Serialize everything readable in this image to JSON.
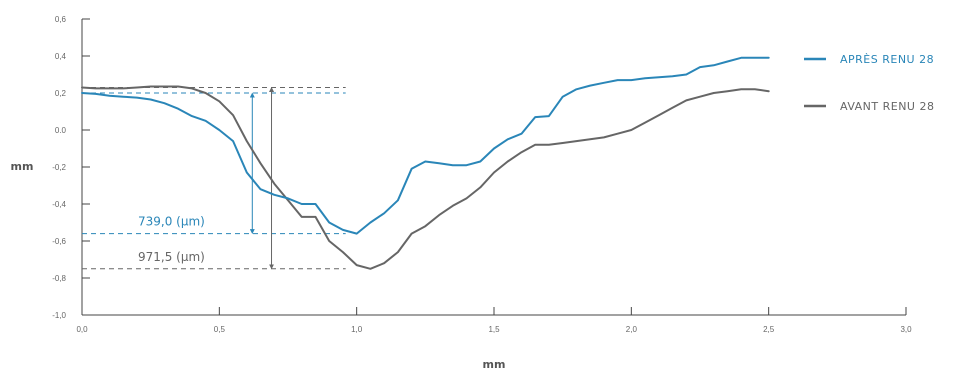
{
  "chart_data": {
    "type": "line",
    "title": "",
    "xlabel": "mm",
    "ylabel": "mm",
    "xlim": [
      0,
      3.0
    ],
    "ylim": [
      -1.0,
      0.6
    ],
    "x_ticks": [
      "0,0",
      "0,5",
      "1,0",
      "1,5",
      "2,0",
      "2,5",
      "3,0"
    ],
    "y_ticks": [
      "0,6",
      "0,4",
      "0,2",
      "0.0",
      "-0,2",
      "-0,4",
      "-0,6",
      "-0,8",
      "-1,0"
    ],
    "grid": false,
    "legend_position": "right",
    "colors": {
      "apres": "#2a86b8",
      "avant": "#666666",
      "axis": "#444444"
    },
    "series": [
      {
        "name": "APRÈS RENU 28",
        "color": "#2a86b8",
        "x": [
          0.0,
          0.05,
          0.1,
          0.15,
          0.2,
          0.25,
          0.3,
          0.35,
          0.4,
          0.45,
          0.5,
          0.55,
          0.6,
          0.65,
          0.7,
          0.75,
          0.8,
          0.85,
          0.9,
          0.95,
          1.0,
          1.05,
          1.1,
          1.15,
          1.2,
          1.25,
          1.3,
          1.35,
          1.4,
          1.45,
          1.5,
          1.55,
          1.6,
          1.65,
          1.7,
          1.75,
          1.8,
          1.85,
          1.9,
          1.95,
          2.0,
          2.05,
          2.1,
          2.15,
          2.2,
          2.25,
          2.3,
          2.35,
          2.4,
          2.45,
          2.5
        ],
        "values": [
          0.2,
          0.195,
          0.185,
          0.18,
          0.175,
          0.165,
          0.145,
          0.115,
          0.075,
          0.05,
          0.0,
          -0.06,
          -0.23,
          -0.32,
          -0.35,
          -0.37,
          -0.4,
          -0.4,
          -0.5,
          -0.54,
          -0.56,
          -0.5,
          -0.45,
          -0.38,
          -0.21,
          -0.17,
          -0.18,
          -0.19,
          -0.19,
          -0.17,
          -0.1,
          -0.05,
          -0.02,
          0.07,
          0.075,
          0.18,
          0.22,
          0.24,
          0.255,
          0.27,
          0.27,
          0.28,
          0.285,
          0.29,
          0.3,
          0.34,
          0.35,
          0.37,
          0.39,
          0.39,
          0.39
        ]
      },
      {
        "name": "AVANT RENU 28",
        "color": "#666666",
        "x": [
          0.0,
          0.05,
          0.1,
          0.15,
          0.2,
          0.25,
          0.3,
          0.35,
          0.4,
          0.45,
          0.5,
          0.55,
          0.6,
          0.65,
          0.7,
          0.75,
          0.8,
          0.85,
          0.9,
          0.95,
          1.0,
          1.05,
          1.1,
          1.15,
          1.2,
          1.25,
          1.3,
          1.35,
          1.4,
          1.45,
          1.5,
          1.55,
          1.6,
          1.65,
          1.7,
          1.75,
          1.8,
          1.85,
          1.9,
          1.95,
          2.0,
          2.05,
          2.1,
          2.15,
          2.2,
          2.25,
          2.3,
          2.35,
          2.4,
          2.45,
          2.5
        ],
        "values": [
          0.23,
          0.225,
          0.225,
          0.225,
          0.23,
          0.235,
          0.235,
          0.235,
          0.225,
          0.2,
          0.155,
          0.08,
          -0.06,
          -0.18,
          -0.29,
          -0.38,
          -0.47,
          -0.47,
          -0.6,
          -0.66,
          -0.73,
          -0.75,
          -0.72,
          -0.66,
          -0.56,
          -0.52,
          -0.46,
          -0.41,
          -0.37,
          -0.31,
          -0.23,
          -0.17,
          -0.12,
          -0.08,
          -0.08,
          -0.07,
          -0.06,
          -0.05,
          -0.04,
          -0.02,
          0.0,
          0.04,
          0.08,
          0.12,
          0.16,
          0.18,
          0.2,
          0.21,
          0.22,
          0.22,
          0.21
        ]
      }
    ],
    "annotations": [
      {
        "label": "739,0 (µm)",
        "color": "#2a86b8",
        "top": 0.2,
        "bottom": -0.56,
        "arrow_x": 0.62,
        "x_start": 0.0,
        "x_end": 0.96
      },
      {
        "label": "971,5 (µm)",
        "color": "#666666",
        "top": 0.23,
        "bottom": -0.75,
        "arrow_x": 0.69,
        "x_start": 0.0,
        "x_end": 0.96
      }
    ]
  }
}
